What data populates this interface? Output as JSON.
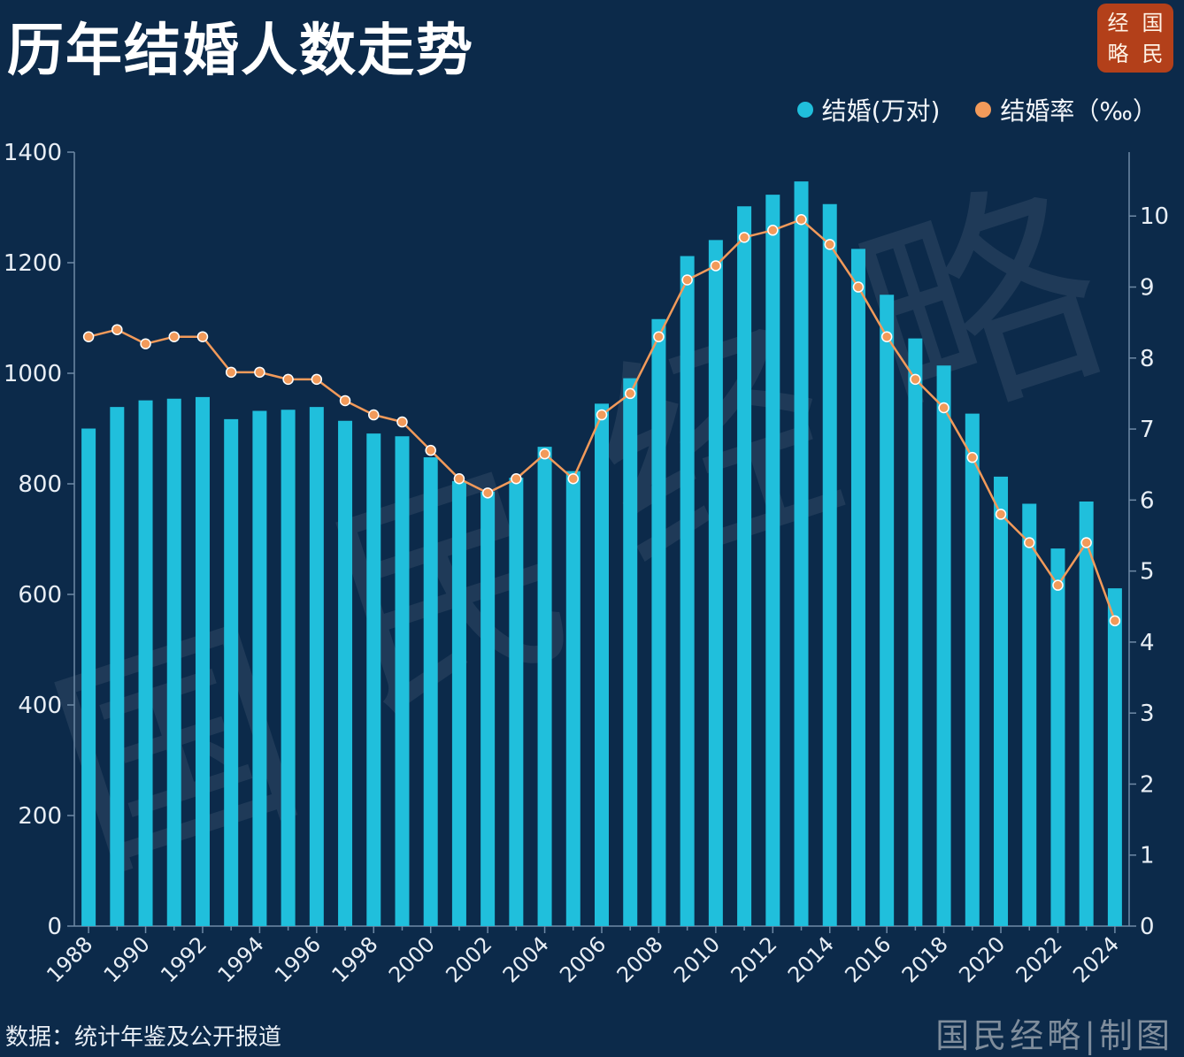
{
  "header": {
    "title": "历年结婚人数走势"
  },
  "logo": {
    "chars": [
      "经",
      "国",
      "略",
      "民"
    ]
  },
  "legend": {
    "items": [
      {
        "label": "结婚(万对)",
        "color": "#20bfdc"
      },
      {
        "label": "结婚率（‰）",
        "color": "#f29a5a"
      }
    ]
  },
  "footer": {
    "source": "数据：统计年鉴及公开报道",
    "credit": "国民经略|制图"
  },
  "watermark": {
    "chars": [
      "国",
      "民",
      "经",
      "略"
    ]
  },
  "colors": {
    "background": "#0c2a4a",
    "bar": "#20bfdc",
    "line": "#f29a5a",
    "axis": "#6f8aa6",
    "text": "#e8eef5"
  },
  "chart_data": {
    "type": "bar",
    "categories": [
      "1988",
      "1989",
      "1990",
      "1991",
      "1992",
      "1993",
      "1994",
      "1995",
      "1996",
      "1997",
      "1998",
      "1999",
      "2000",
      "2001",
      "2002",
      "2003",
      "2004",
      "2005",
      "2006",
      "2007",
      "2008",
      "2009",
      "2010",
      "2011",
      "2012",
      "2013",
      "2014",
      "2015",
      "2016",
      "2017",
      "2018",
      "2019",
      "2020",
      "2021",
      "2022",
      "2023",
      "2024"
    ],
    "xtick_labels": [
      "1988",
      "1990",
      "1992",
      "1994",
      "1996",
      "1998",
      "2000",
      "2002",
      "2004",
      "2006",
      "2008",
      "2010",
      "2012",
      "2014",
      "2016",
      "2018",
      "2020",
      "2022",
      "2024"
    ],
    "series": [
      {
        "name": "结婚(万对)",
        "type": "bar",
        "axis": "left",
        "values": [
          900,
          939,
          951,
          954,
          957,
          917,
          932,
          934,
          939,
          914,
          891,
          886,
          848,
          805,
          786,
          811,
          867,
          823,
          945,
          991,
          1098,
          1212,
          1241,
          1302,
          1323,
          1347,
          1306,
          1225,
          1142,
          1063,
          1014,
          927,
          813,
          764,
          683,
          768,
          611
        ]
      },
      {
        "name": "结婚率（‰）",
        "type": "line",
        "axis": "right",
        "values": [
          8.3,
          8.4,
          8.2,
          8.3,
          8.3,
          7.8,
          7.8,
          7.7,
          7.7,
          7.4,
          7.2,
          7.1,
          6.7,
          6.3,
          6.1,
          6.3,
          6.65,
          6.3,
          7.2,
          7.5,
          8.3,
          9.1,
          9.3,
          9.7,
          9.8,
          9.95,
          9.6,
          9.0,
          8.3,
          7.7,
          7.3,
          6.6,
          5.8,
          5.4,
          4.8,
          5.4,
          4.3
        ]
      }
    ],
    "y_left": {
      "ylim": [
        0,
        1400
      ],
      "ticks": [
        0,
        200,
        400,
        600,
        800,
        1000,
        1200,
        1400
      ]
    },
    "y_right": {
      "ylim": [
        0,
        10.9
      ],
      "ticks": [
        0,
        1,
        2,
        3,
        4,
        5,
        6,
        7,
        8,
        9,
        10
      ]
    },
    "grid": false,
    "legend_position": "top-right"
  }
}
